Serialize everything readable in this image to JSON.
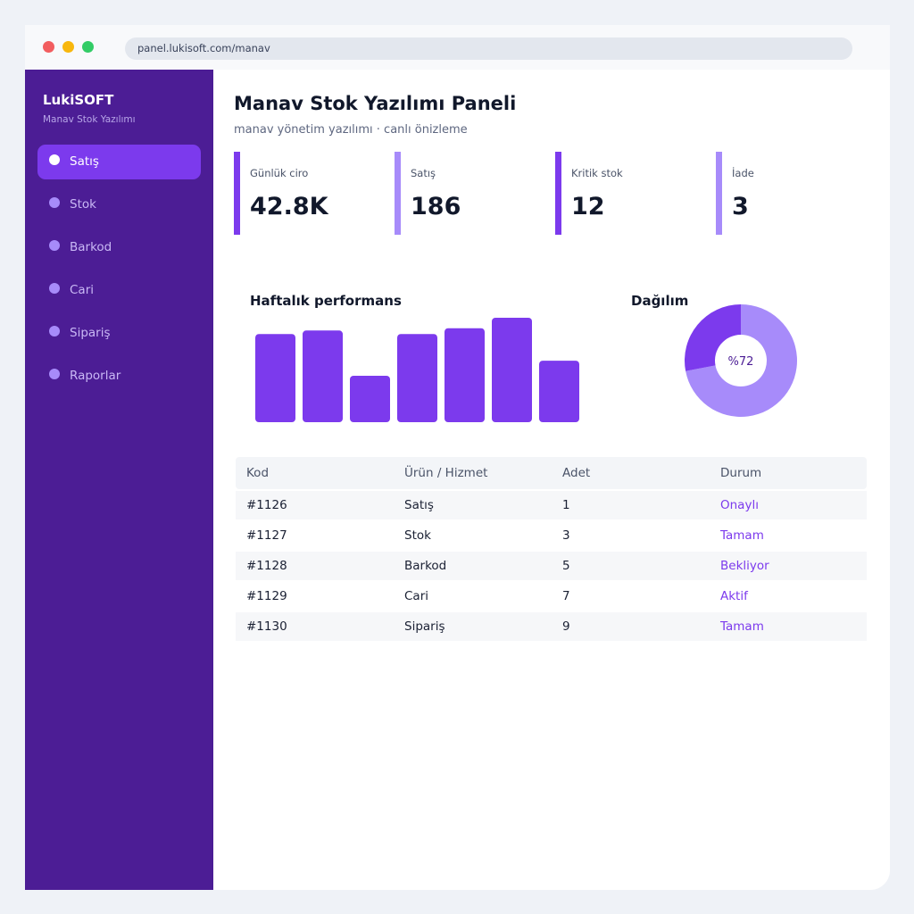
{
  "browser": {
    "url": "panel.lukisoft.com/manav"
  },
  "sidebar": {
    "brand": "LukiSOFT",
    "brand_sub": "Manav Stok Yazılımı",
    "items": [
      {
        "label": "Satış",
        "active": true
      },
      {
        "label": "Stok"
      },
      {
        "label": "Barkod"
      },
      {
        "label": "Cari"
      },
      {
        "label": "Sipariş"
      },
      {
        "label": "Raporlar"
      }
    ]
  },
  "header": {
    "title": "Manav Stok Yazılımı Paneli",
    "subtitle": "manav yönetim yazılımı · canlı önizleme"
  },
  "stats": [
    {
      "label": "Günlük ciro",
      "value": "42.8K"
    },
    {
      "label": "Satış",
      "value": "186"
    },
    {
      "label": "Kritik stok",
      "value": "12"
    },
    {
      "label": "İade",
      "value": "3"
    }
  ],
  "performance": {
    "title": "Haftalık performans"
  },
  "distribution": {
    "title": "Dağılım",
    "center_label": "%72"
  },
  "chart_data": [
    {
      "type": "bar",
      "title": "Haftalık performans",
      "values": [
        76,
        79,
        40,
        76,
        81,
        90,
        53
      ],
      "ylim": [
        0,
        100
      ]
    },
    {
      "type": "pie",
      "title": "Dağılım",
      "values": [
        72,
        28
      ],
      "colors": [
        "#a78bfa",
        "#7c3aed"
      ],
      "center_label": "%72"
    }
  ],
  "table": {
    "headers": [
      "Kod",
      "Ürün / Hizmet",
      "Adet",
      "Durum"
    ],
    "rows": [
      [
        "#1126",
        "Satış",
        "1",
        "Onaylı"
      ],
      [
        "#1127",
        "Stok",
        "3",
        "Tamam"
      ],
      [
        "#1128",
        "Barkod",
        "5",
        "Bekliyor"
      ],
      [
        "#1129",
        "Cari",
        "7",
        "Aktif"
      ],
      [
        "#1130",
        "Sipariş",
        "9",
        "Tamam"
      ]
    ]
  },
  "colors": {
    "accent": "#7c3aed",
    "accent_light": "#a78bfa",
    "sidebar": "#4c1d95"
  }
}
